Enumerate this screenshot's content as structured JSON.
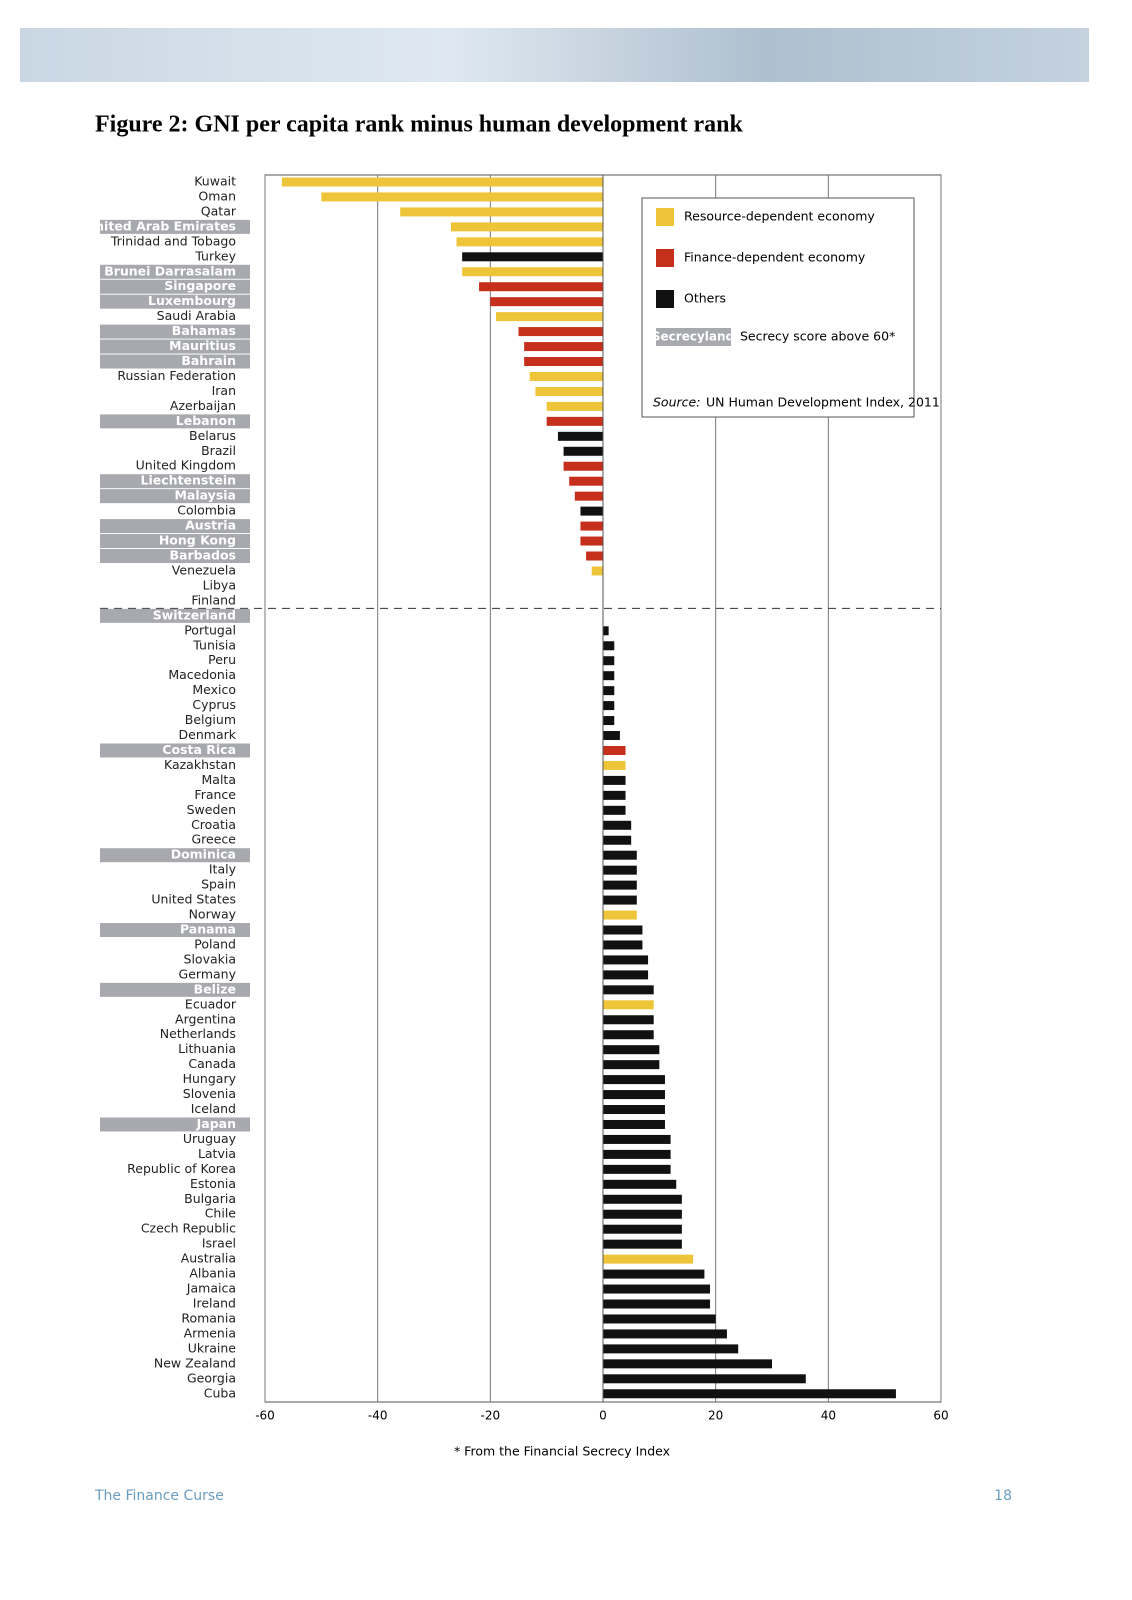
{
  "chart_data": {
    "type": "hbar",
    "title": "Figure 2: GNI per capita rank minus human development rank",
    "categories": [
      "Kuwait",
      "Oman",
      "Qatar",
      "United Arab Emirates",
      "Trinidad and Tobago",
      "Turkey",
      "Brunei Darrasalam",
      "Singapore",
      "Luxembourg",
      "Saudi Arabia",
      "Bahamas",
      "Mauritius",
      "Bahrain",
      "Russian Federation",
      "Iran",
      "Azerbaijan",
      "Lebanon",
      "Belarus",
      "Brazil",
      "United Kingdom",
      "Liechtenstein",
      "Malaysia",
      "Colombia",
      "Austria",
      "Hong Kong",
      "Barbados",
      "Venezuela",
      "Libya",
      "Finland",
      "Switzerland",
      "Portugal",
      "Tunisia",
      "Peru",
      "Macedonia",
      "Mexico",
      "Cyprus",
      "Belgium",
      "Denmark",
      "Costa Rica",
      "Kazakhstan",
      "Malta",
      "France",
      "Sweden",
      "Croatia",
      "Greece",
      "Dominica",
      "Italy",
      "Spain",
      "United States",
      "Norway",
      "Panama",
      "Poland",
      "Slovakia",
      "Germany",
      "Belize",
      "Ecuador",
      "Argentina",
      "Netherlands",
      "Lithuania",
      "Canada",
      "Hungary",
      "Slovenia",
      "Iceland",
      "Japan",
      "Uruguay",
      "Latvia",
      "Republic of Korea",
      "Estonia",
      "Bulgaria",
      "Chile",
      "Czech Republic",
      "Israel",
      "Australia",
      "Albania",
      "Jamaica",
      "Ireland",
      "Romania",
      "Armenia",
      "Ukraine",
      "New Zealand",
      "Georgia",
      "Cuba"
    ],
    "series": [
      {
        "name": "Resource-dependent economy",
        "color": "#eec438",
        "values": [
          -57,
          -50,
          -36,
          -27,
          -26,
          null,
          -25,
          null,
          null,
          -19,
          null,
          null,
          null,
          -13,
          -12,
          -10,
          null,
          null,
          null,
          null,
          null,
          null,
          null,
          null,
          null,
          null,
          -2,
          null,
          null,
          null,
          null,
          null,
          null,
          null,
          null,
          null,
          null,
          null,
          null,
          4,
          null,
          null,
          null,
          null,
          null,
          null,
          null,
          null,
          null,
          6,
          null,
          null,
          null,
          null,
          null,
          9,
          null,
          null,
          null,
          null,
          null,
          null,
          null,
          null,
          null,
          null,
          null,
          null,
          null,
          null,
          null,
          null,
          16,
          null,
          null,
          null,
          null,
          null,
          null,
          null,
          null,
          null
        ]
      },
      {
        "name": "Finance-dependent economy",
        "color": "#c52f1c",
        "values": [
          null,
          null,
          null,
          null,
          null,
          null,
          null,
          -22,
          -20,
          null,
          -15,
          -14,
          -14,
          null,
          null,
          null,
          -10,
          null,
          null,
          -7,
          -6,
          -5,
          null,
          -4,
          -4,
          -3,
          null,
          null,
          null,
          null,
          null,
          null,
          null,
          null,
          null,
          null,
          null,
          null,
          4,
          null,
          null,
          null,
          null,
          null,
          null,
          null,
          null,
          null,
          null,
          null,
          null,
          null,
          null,
          null,
          null,
          null,
          null,
          null,
          null,
          null,
          null,
          null,
          null,
          null,
          null,
          null,
          null,
          null,
          null,
          null,
          null,
          null,
          null,
          null,
          null,
          null,
          null,
          null,
          null,
          null,
          null,
          null
        ]
      },
      {
        "name": "Others",
        "color": "#111111",
        "values": [
          null,
          null,
          null,
          null,
          null,
          -25,
          null,
          null,
          null,
          null,
          null,
          null,
          null,
          null,
          null,
          null,
          null,
          -8,
          -7,
          null,
          null,
          null,
          -4,
          null,
          null,
          null,
          null,
          0,
          0,
          0,
          1,
          2,
          2,
          2,
          2,
          2,
          2,
          3,
          null,
          null,
          4,
          4,
          4,
          5,
          5,
          6,
          6,
          6,
          6,
          null,
          7,
          7,
          8,
          8,
          9,
          null,
          9,
          9,
          10,
          10,
          11,
          11,
          11,
          11,
          12,
          12,
          12,
          13,
          14,
          14,
          14,
          14,
          null,
          18,
          19,
          19,
          20,
          22,
          24,
          30,
          36,
          52
        ]
      }
    ],
    "secrecy_highlight": [
      3,
      6,
      7,
      8,
      10,
      11,
      12,
      16,
      20,
      21,
      23,
      24,
      25,
      29,
      38,
      45,
      50,
      54,
      63
    ],
    "secrecy_label": "Secrecyland",
    "secrecy_note": "Secrecy score above 60*",
    "source_label": "Source:",
    "source": "UN Human Development Index, 2011",
    "footnote": "* From the Financial Secrecy Index",
    "xlim": [
      -60,
      60
    ],
    "xticks": [
      -60,
      -40,
      -20,
      0,
      20,
      40,
      60
    ],
    "grid": true
  },
  "footer": {
    "left": "The Finance Curse",
    "page": "18"
  }
}
